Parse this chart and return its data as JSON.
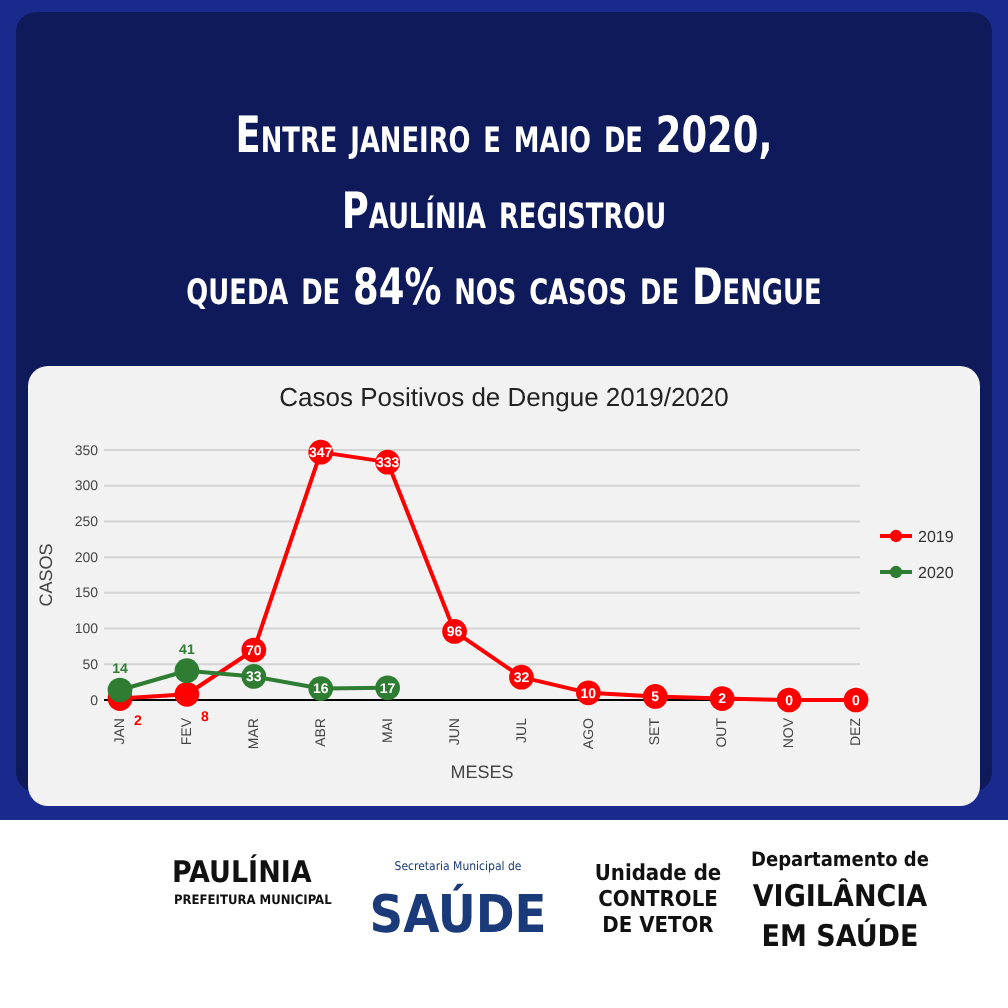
{
  "chart_data": {
    "type": "line",
    "title": "Casos Positivos de Dengue 2019/2020",
    "subtitle": "Entre janeiro e maio de 2020,\nPaulínia registrou\nqueda de 84% nos casos de Dengue",
    "xlabel": "MESES",
    "ylabel": "CASOS",
    "categories": [
      "JAN",
      "FEV",
      "MAR",
      "ABR",
      "MAI",
      "JUN",
      "JUL",
      "AGO",
      "SET",
      "OUT",
      "NOV",
      "DEZ"
    ],
    "series": [
      {
        "name": "2019",
        "color": "#ff0000",
        "values": [
          2,
          8,
          70,
          347,
          333,
          96,
          32,
          10,
          5,
          2,
          0,
          0
        ]
      },
      {
        "name": "2020",
        "color": "#2e7d32",
        "values": [
          14,
          41,
          33,
          16,
          17,
          null,
          null,
          null,
          null,
          null,
          null,
          null
        ]
      }
    ],
    "ylim": [
      0,
      350
    ],
    "yticks": [
      0,
      50,
      100,
      150,
      200,
      250,
      300,
      350
    ],
    "grid": "y",
    "legend": "right",
    "marker": "circle",
    "data_labels": true,
    "annotations": [
      "PAULÍNIA",
      "PREFEITURA MUNICIPAL",
      "Secretaria Municipal de",
      "SAÚDE",
      "Unidade de\nCONTROLE\nDE VETOR",
      "Departamento de\nVIGILÂNCIA\nEM SAÚDE"
    ]
  }
}
